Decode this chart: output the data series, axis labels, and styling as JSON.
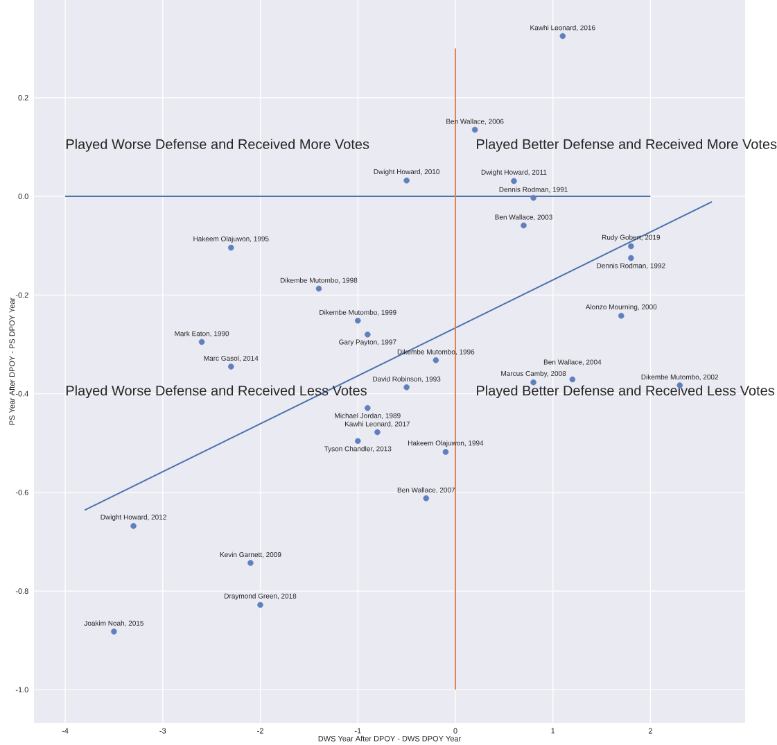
{
  "chart_data": {
    "type": "scatter",
    "xlabel": "DWS Year After DPOY - DWS DPOY Year",
    "ylabel": "PS Year After DPOY - PS DPOY Year",
    "xlim": [
      -4.32,
      2.97
    ],
    "ylim": [
      -1.067,
      0.398
    ],
    "xticks": [
      -4,
      -3,
      -2,
      -1,
      0,
      1,
      2
    ],
    "yticks": [
      {
        "value": -1.0,
        "label": "-1.0"
      },
      {
        "value": -0.8,
        "label": "-0.8"
      },
      {
        "value": -0.6,
        "label": "-0.6"
      },
      {
        "value": -0.4,
        "label": "-0.4"
      },
      {
        "value": -0.2,
        "label": "-0.2"
      },
      {
        "value": 0.0,
        "label": "0.0"
      },
      {
        "value": 0.2,
        "label": "0.2"
      }
    ],
    "grid": true,
    "series": [
      {
        "color": "#5f80bd",
        "marker": "circle",
        "x": [
          1.1,
          0.2,
          -0.5,
          0.6,
          0.8,
          0.7,
          1.8,
          1.8,
          -2.3,
          -1.4,
          1.7,
          -1.0,
          -0.9,
          -2.6,
          -0.2,
          -2.3,
          0.8,
          1.2,
          2.3,
          -0.5,
          -0.9,
          -0.8,
          -1.0,
          -0.1,
          -0.3,
          -3.3,
          -2.1,
          -2.0,
          -3.5
        ],
        "values": [
          0.325,
          0.135,
          0.032,
          0.031,
          -0.003,
          -0.059,
          -0.101,
          -0.125,
          -0.104,
          -0.187,
          -0.242,
          -0.252,
          -0.28,
          -0.295,
          -0.332,
          -0.345,
          -0.377,
          -0.371,
          -0.383,
          -0.387,
          -0.429,
          -0.478,
          -0.496,
          -0.518,
          -0.612,
          -0.668,
          -0.743,
          -0.828,
          -0.882
        ]
      },
      {
        "type": "line",
        "color": "#4c72b0",
        "marker": "none",
        "x": [
          -3.8,
          2.63
        ],
        "values": [
          -0.636,
          -0.011
        ]
      },
      {
        "type": "line",
        "color": "#4c72b0",
        "marker": "none",
        "x": [
          -4,
          2
        ],
        "values": [
          0,
          0
        ]
      },
      {
        "type": "line",
        "color": "#dd8452",
        "marker": "none",
        "x": [
          0,
          0
        ],
        "values": [
          -1.0,
          0.3
        ]
      }
    ],
    "annotations": [
      {
        "text": "Kawhi Leonard, 2016",
        "x": 1.1,
        "y": 0.325
      },
      {
        "text": "Ben Wallace, 2006",
        "x": 0.2,
        "y": 0.135
      },
      {
        "text": "Dwight Howard, 2010",
        "x": -0.5,
        "y": 0.032
      },
      {
        "text": "Dwight Howard, 2011",
        "x": 0.6,
        "y": 0.031
      },
      {
        "text": "Dennis Rodman, 1991",
        "x": 0.8,
        "y": -0.003
      },
      {
        "text": "Ben Wallace, 2003",
        "x": 0.7,
        "y": -0.059
      },
      {
        "text": "Rudy Gobert, 2019",
        "x": 1.8,
        "y": -0.101
      },
      {
        "text": "Dennis Rodman, 1992",
        "x": 1.8,
        "y": -0.125
      },
      {
        "text": "Hakeem Olajuwon, 1995",
        "x": -2.3,
        "y": -0.104
      },
      {
        "text": "Dikembe Mutombo, 1998",
        "x": -1.4,
        "y": -0.187
      },
      {
        "text": "Alonzo Mourning, 2000",
        "x": 1.7,
        "y": -0.242
      },
      {
        "text": "Dikembe Mutombo, 1999",
        "x": -1.0,
        "y": -0.252
      },
      {
        "text": "Gary Payton, 1997",
        "x": -0.9,
        "y": -0.28
      },
      {
        "text": "Mark Eaton, 1990",
        "x": -2.6,
        "y": -0.295
      },
      {
        "text": "Dikembe Mutombo, 1996",
        "x": -0.2,
        "y": -0.332
      },
      {
        "text": "Marc Gasol, 2014",
        "x": -2.3,
        "y": -0.345
      },
      {
        "text": "Marcus Camby, 2008",
        "x": 0.8,
        "y": -0.377
      },
      {
        "text": "Ben Wallace, 2004",
        "x": 1.2,
        "y": -0.371
      },
      {
        "text": "Dikembe Mutombo, 2002",
        "x": 2.3,
        "y": -0.383
      },
      {
        "text": "David Robinson, 1993",
        "x": -0.5,
        "y": -0.387
      },
      {
        "text": "Michael Jordan, 1989",
        "x": -0.9,
        "y": -0.429
      },
      {
        "text": "Kawhi Leonard, 2017",
        "x": -0.8,
        "y": -0.478
      },
      {
        "text": "Tyson Chandler, 2013",
        "x": -1.0,
        "y": -0.496
      },
      {
        "text": "Hakeem Olajuwon, 1994",
        "x": -0.1,
        "y": -0.518
      },
      {
        "text": "Ben Wallace, 2007",
        "x": -0.3,
        "y": -0.612
      },
      {
        "text": "Dwight Howard, 2012",
        "x": -3.3,
        "y": -0.668
      },
      {
        "text": "Kevin Garnett, 2009",
        "x": -2.1,
        "y": -0.743
      },
      {
        "text": "Draymond Green, 2018",
        "x": -2.0,
        "y": -0.828
      },
      {
        "text": "Joakim Noah, 2015",
        "x": -3.5,
        "y": -0.882
      },
      "Played Worse Defense and Received More Votes",
      "Played Better Defense and Received More Votes",
      "Played Worse Defense and Received Less Votes",
      "Played Better Defense and Received Less Votes"
    ]
  }
}
